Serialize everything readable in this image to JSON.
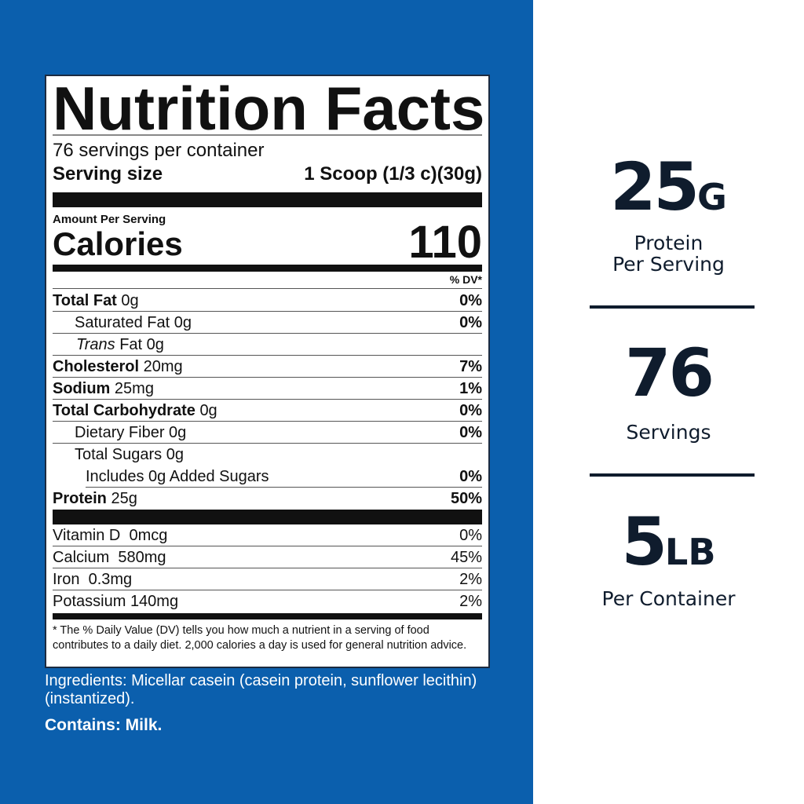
{
  "colors": {
    "panel": "#0b5fad",
    "accent_text": "#0f1c2d"
  },
  "label": {
    "title": "Nutrition Facts",
    "servings": "76 servings per container",
    "serving_size_label": "Serving size",
    "serving_size_value": "1 Scoop (1/3 c)(30g)",
    "amount_per_serving": "Amount Per Serving",
    "calories_label": "Calories",
    "calories_value": "110",
    "dv_header": "% DV*",
    "nutrients": [
      {
        "name": "Total Fat",
        "amount": "0g",
        "dv": "0%"
      },
      {
        "name": "Saturated Fat",
        "amount": "0g",
        "dv": "0%"
      },
      {
        "name": "Trans",
        "name_rest": "Fat",
        "amount": "0g",
        "dv": ""
      },
      {
        "name": "Cholesterol",
        "amount": "20mg",
        "dv": "7%"
      },
      {
        "name": "Sodium",
        "amount": "25mg",
        "dv": "1%"
      },
      {
        "name": "Total Carbohydrate",
        "amount": "0g",
        "dv": "0%"
      },
      {
        "name": "Dietary Fiber",
        "amount": "0g",
        "dv": "0%"
      },
      {
        "name": "Total Sugars",
        "amount": "0g",
        "dv": ""
      },
      {
        "name": "Includes 0g Added Sugars",
        "amount": "",
        "dv": "0%"
      },
      {
        "name": "Protein",
        "amount": "25g",
        "dv": "50%"
      }
    ],
    "vitamins": [
      {
        "name": "Vitamin D",
        "amount": "0mcg",
        "dv": "0%"
      },
      {
        "name": "Calcium",
        "amount": "580mg",
        "dv": "45%"
      },
      {
        "name": "Iron",
        "amount": "0.3mg",
        "dv": "2%"
      },
      {
        "name": "Potassium",
        "amount": "140mg",
        "dv": "2%"
      }
    ],
    "footnote": "* The % Daily Value (DV) tells you how much a nutrient in a serving of food contributes to a daily diet. 2,000 calories a day is used for general nutrition advice."
  },
  "ingredients": "Ingredients: Micellar casein (casein protein, sunflower lecithin) (instantized).",
  "contains": "Contains: Milk.",
  "stats": [
    {
      "value": "25",
      "unit": "G",
      "label_1": "Protein",
      "label_2": "Per Serving"
    },
    {
      "value": "76",
      "unit": "",
      "label_1": "Servings",
      "label_2": ""
    },
    {
      "value": "5",
      "unit": "LB",
      "label_1": "Per Container",
      "label_2": ""
    }
  ]
}
